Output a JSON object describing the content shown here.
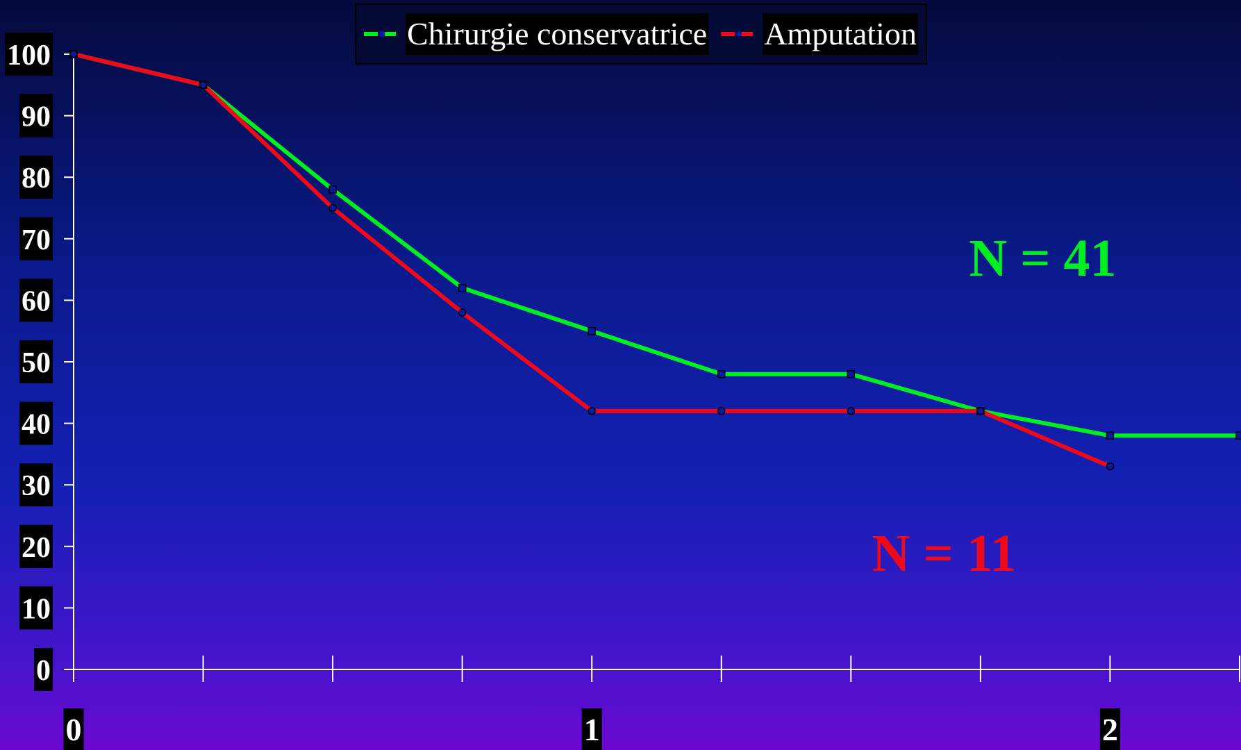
{
  "chart_data": {
    "type": "line",
    "title": "",
    "xlabel": "",
    "ylabel": "",
    "x": [
      0,
      0.25,
      0.5,
      0.75,
      1,
      1.25,
      1.5,
      1.75,
      2,
      2.25
    ],
    "xlim": [
      0,
      2.25
    ],
    "ylim": [
      0,
      100
    ],
    "yticks": [
      0,
      10,
      20,
      30,
      40,
      50,
      60,
      70,
      80,
      90,
      100
    ],
    "x_tick_labels": [
      "0",
      "1",
      "2"
    ],
    "x_tick_values": [
      0,
      1,
      2
    ],
    "grid": false,
    "legend_position": "top-center",
    "series": [
      {
        "name": "Chirurgie conservatrice",
        "color": "#00ee22",
        "marker": "square",
        "values": [
          100,
          95,
          78,
          62,
          55,
          48,
          48,
          42,
          38,
          38
        ]
      },
      {
        "name": "Amputation",
        "color": "#ee0a1a",
        "marker": "circle",
        "values": [
          100,
          95,
          75,
          58,
          42,
          42,
          42,
          42,
          33,
          null
        ]
      }
    ],
    "annotations": [
      {
        "text": "N = 41",
        "color": "#00ee22",
        "x": 1.87,
        "y": 64
      },
      {
        "text": "N = 11",
        "color": "#ee0a1a",
        "x": 1.68,
        "y": 16
      }
    ]
  }
}
